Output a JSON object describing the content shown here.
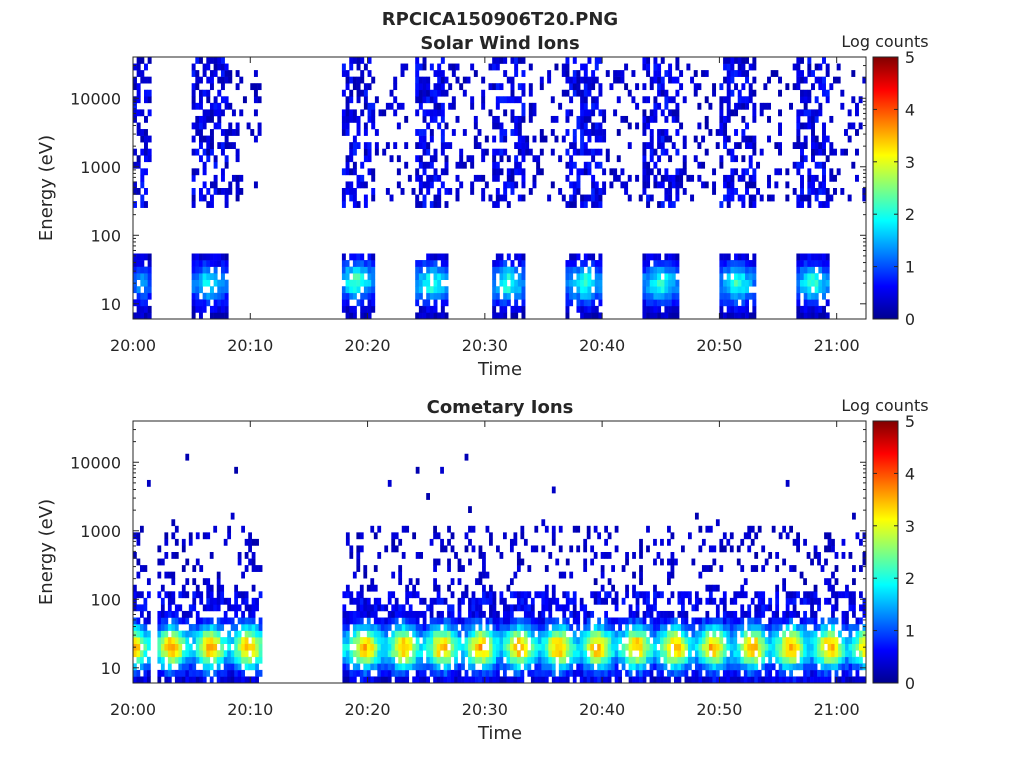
{
  "figure": {
    "title": "RPCICA150906T20.PNG"
  },
  "chart_data": [
    {
      "type": "heatmap",
      "title": "Solar Wind Ions",
      "xlabel": "Time",
      "ylabel": "Energy (eV)",
      "x_ticks": [
        "20:00",
        "20:10",
        "20:20",
        "20:30",
        "20:40",
        "20:50",
        "21:00"
      ],
      "x_range_min": [
        0,
        62.5
      ],
      "y_scale": "log",
      "y_ticks": [
        "10",
        "100",
        "1000",
        "10000"
      ],
      "ylim": [
        6,
        40000
      ],
      "colorbar": {
        "label": "Log counts",
        "ticks": [
          "0",
          "1",
          "2",
          "3",
          "4",
          "5"
        ],
        "range": [
          0,
          5
        ]
      },
      "colormap": "jet",
      "data_gaps_min": [
        [
          1.5,
          5
        ],
        [
          10.8,
          17.7
        ]
      ],
      "bursts": [
        {
          "start_min": 0,
          "end_min": 1.5,
          "peak_energy_eV": 20,
          "peak_log_counts": 1.3
        },
        {
          "start_min": 5,
          "end_min": 8,
          "peak_energy_eV": 20,
          "peak_log_counts": 1.8
        },
        {
          "start_min": 17.7,
          "end_min": 20.5,
          "peak_energy_eV": 22,
          "peak_log_counts": 2.2
        },
        {
          "start_min": 24,
          "end_min": 27,
          "peak_energy_eV": 20,
          "peak_log_counts": 2.0
        },
        {
          "start_min": 30.5,
          "end_min": 33.5,
          "peak_energy_eV": 20,
          "peak_log_counts": 2.0
        },
        {
          "start_min": 37,
          "end_min": 40,
          "peak_energy_eV": 20,
          "peak_log_counts": 2.0
        },
        {
          "start_min": 43.5,
          "end_min": 46.5,
          "peak_energy_eV": 20,
          "peak_log_counts": 2.0
        },
        {
          "start_min": 50,
          "end_min": 53,
          "peak_energy_eV": 20,
          "peak_log_counts": 2.0
        },
        {
          "start_min": 56.5,
          "end_min": 59.5,
          "peak_energy_eV": 20,
          "peak_log_counts": 2.0
        }
      ]
    },
    {
      "type": "heatmap",
      "title": "Cometary Ions",
      "xlabel": "Time",
      "ylabel": "Energy (eV)",
      "x_ticks": [
        "20:00",
        "20:10",
        "20:20",
        "20:30",
        "20:40",
        "20:50",
        "21:00"
      ],
      "x_range_min": [
        0,
        62.5
      ],
      "y_scale": "log",
      "y_ticks": [
        "10",
        "100",
        "1000",
        "10000"
      ],
      "ylim": [
        6,
        40000
      ],
      "colorbar": {
        "label": "Log counts",
        "ticks": [
          "0",
          "1",
          "2",
          "3",
          "4",
          "5"
        ],
        "range": [
          0,
          5
        ]
      },
      "colormap": "jet",
      "data_gaps_min": [
        [
          1.5,
          2
        ],
        [
          11,
          18
        ]
      ],
      "band_energy_eV": [
        10,
        40
      ],
      "band_peak_log_counts": 3.3,
      "band_period_min": 3.3
    }
  ]
}
